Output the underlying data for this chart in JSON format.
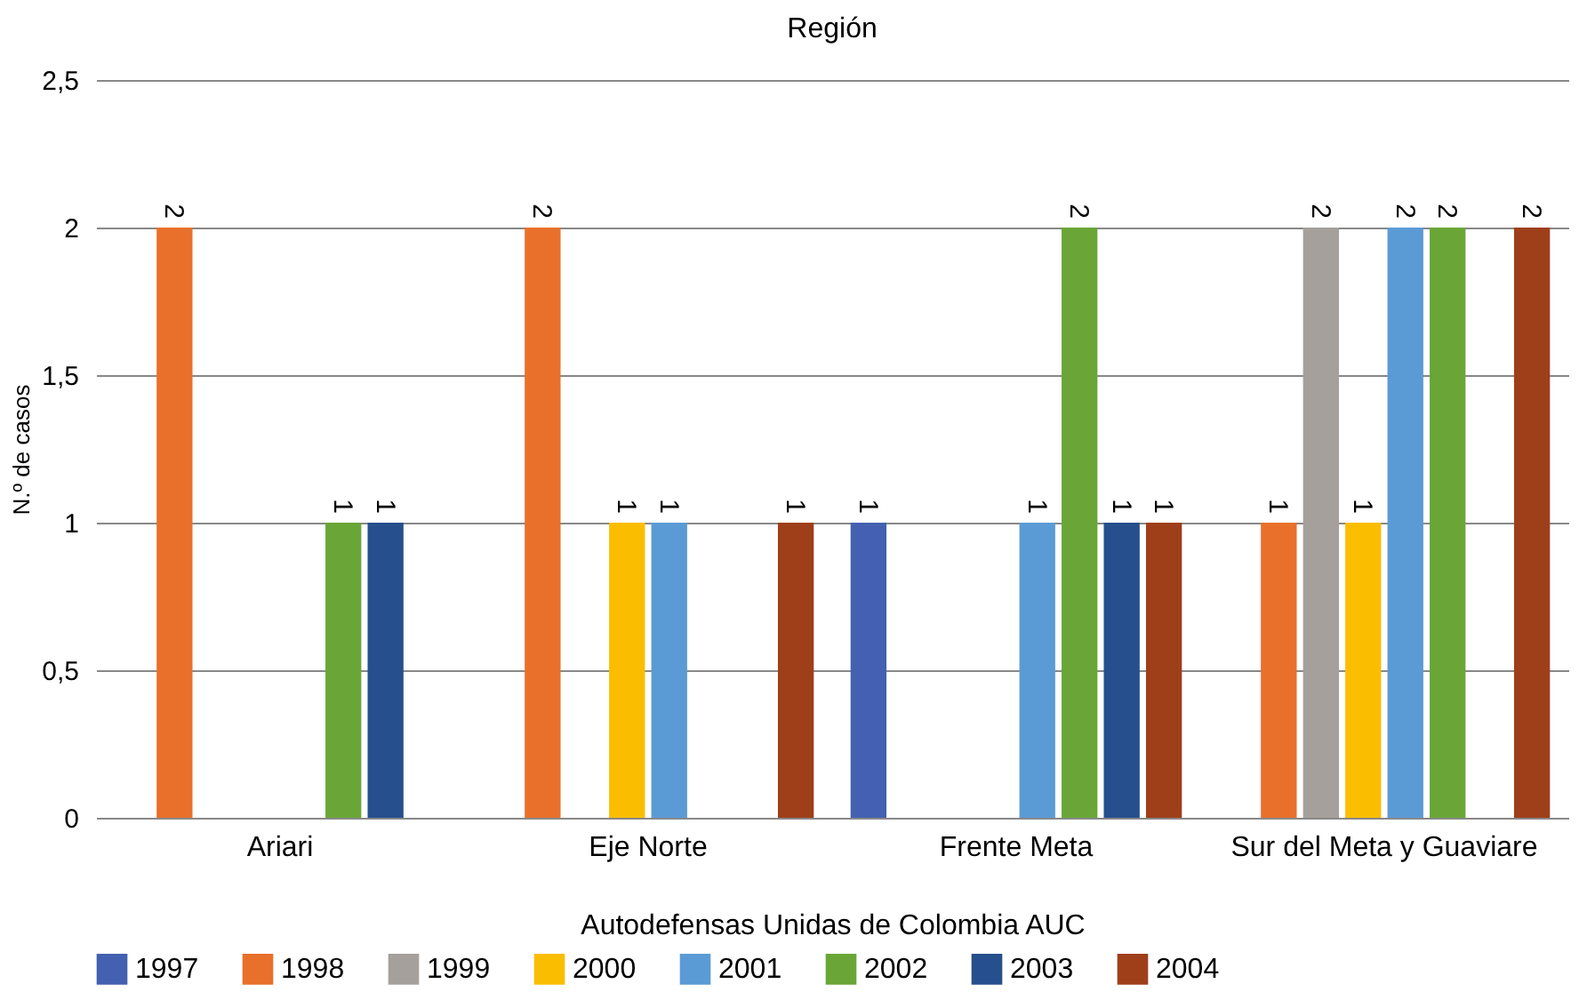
{
  "chart_data": {
    "type": "bar",
    "title": "Región",
    "xlabel": "Autodefensas Unidas de Colombia AUC",
    "ylabel": "N.º de casos",
    "categories": [
      "Ariari",
      "Eje Norte",
      "Frente Meta",
      "Sur del Meta y Guaviare"
    ],
    "series": [
      {
        "name": "1997",
        "color": "#4361b0",
        "values": [
          null,
          null,
          1,
          null
        ]
      },
      {
        "name": "1998",
        "color": "#e8702a",
        "values": [
          2,
          2,
          null,
          1
        ]
      },
      {
        "name": "1999",
        "color": "#a5a09b",
        "values": [
          null,
          null,
          null,
          2
        ]
      },
      {
        "name": "2000",
        "color": "#fbbd00",
        "values": [
          null,
          1,
          null,
          1
        ]
      },
      {
        "name": "2001",
        "color": "#5b9bd5",
        "values": [
          null,
          1,
          1,
          2
        ]
      },
      {
        "name": "2002",
        "color": "#6aa637",
        "values": [
          1,
          null,
          2,
          2
        ]
      },
      {
        "name": "2003",
        "color": "#264f8d",
        "values": [
          1,
          null,
          1,
          null
        ]
      },
      {
        "name": "2004",
        "color": "#9e3f1a",
        "values": [
          null,
          1,
          1,
          2
        ]
      }
    ],
    "ylim": [
      0,
      2.5
    ],
    "yticks": [
      0,
      {
        "value": 0.5,
        "label": "0,5"
      },
      1,
      {
        "value": 1.5,
        "label": "1,5"
      },
      2,
      {
        "value": 2.5,
        "label": "2,5"
      }
    ],
    "grid": "y",
    "legend": "bottom",
    "data_labels": true
  }
}
